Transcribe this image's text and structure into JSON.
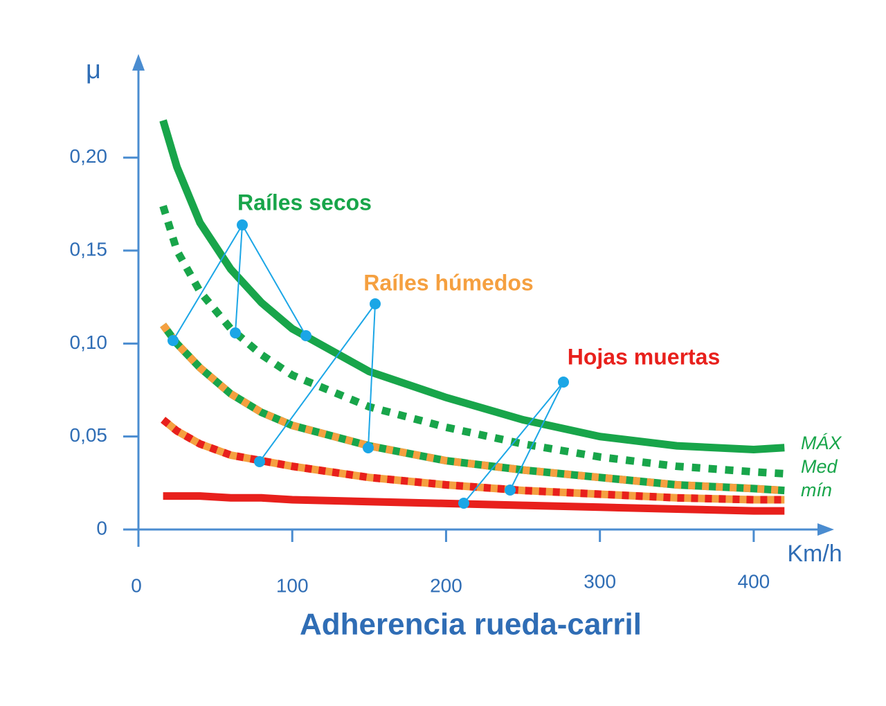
{
  "chart_data": {
    "type": "line",
    "title": "Adherencia rueda-carril",
    "x_label": "Km/h",
    "y_label": "μ",
    "x": [
      16,
      25,
      40,
      60,
      80,
      100,
      150,
      200,
      250,
      300,
      350,
      400,
      420
    ],
    "series": [
      {
        "color": "#18a54a",
        "style": "solid",
        "values": [
          0.22,
          0.195,
          0.165,
          0.14,
          0.122,
          0.108,
          0.085,
          0.071,
          0.059,
          0.05,
          0.045,
          0.043,
          0.044
        ]
      },
      {
        "color": "#18a54a",
        "style": "dotted",
        "values": [
          0.174,
          0.15,
          0.128,
          0.108,
          0.094,
          0.083,
          0.066,
          0.055,
          0.046,
          0.039,
          0.034,
          0.031,
          0.03
        ]
      },
      {
        "color": "#18a54a",
        "dash_color": "#f5a040",
        "style": "dashed",
        "values": [
          0.11,
          0.1,
          0.087,
          0.073,
          0.063,
          0.056,
          0.045,
          0.037,
          0.032,
          0.028,
          0.024,
          0.022,
          0.021
        ]
      },
      {
        "color": "#f5a040",
        "dash_color": "#e8201c",
        "style": "dashed",
        "values": [
          0.059,
          0.053,
          0.046,
          0.04,
          0.037,
          0.034,
          0.028,
          0.024,
          0.021,
          0.019,
          0.017,
          0.016,
          0.016
        ]
      },
      {
        "color": "#e8201c",
        "style": "solid",
        "values": [
          0.018,
          0.018,
          0.018,
          0.017,
          0.017,
          0.016,
          0.015,
          0.014,
          0.013,
          0.012,
          0.011,
          0.01,
          0.01
        ]
      }
    ],
    "groups": [
      {
        "text": "Raíles secos",
        "color": "#18a54a"
      },
      {
        "text": "Raíles húmedos",
        "color": "#f5a040"
      },
      {
        "text": "Hojas muertas",
        "color": "#e8201c"
      }
    ],
    "levels": [
      "MÁX",
      "Med",
      "mín"
    ],
    "xlim": [
      0,
      450
    ],
    "ylim": [
      0,
      0.255
    ],
    "xticks": [
      0,
      100,
      200,
      300,
      400
    ],
    "yticks": [
      0,
      {
        "value": 0.05,
        "label": "0,05"
      },
      {
        "value": 0.1,
        "label": "0,10"
      },
      {
        "value": 0.15,
        "label": "0,15"
      },
      {
        "value": 0.2,
        "label": "0,20"
      }
    ]
  }
}
